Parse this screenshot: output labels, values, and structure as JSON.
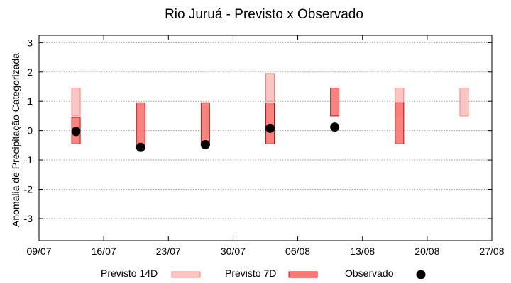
{
  "chart_data": {
    "type": "bar",
    "title": "Rio Juruá - Previsto x Observado",
    "ylabel": "Anomalia de Precipitação Categorizada",
    "xlabel": "",
    "ylim": [
      -3.75,
      3.25
    ],
    "yticks": [
      3,
      2,
      1,
      0,
      -1,
      -2,
      -3
    ],
    "x_range_days": [
      "2024-07-09",
      "2024-08-27"
    ],
    "xticks": [
      "09/07",
      "16/07",
      "23/07",
      "30/07",
      "06/08",
      "13/08",
      "20/08",
      "27/08"
    ],
    "grid": true,
    "series": [
      {
        "name": "Previsto 14D",
        "color": "#f9c6c3",
        "edge": "#e88a84",
        "ranges": [
          {
            "x": "13/07",
            "low": 0.5,
            "high": 1.45
          },
          {
            "x": "03/08",
            "low": 1.0,
            "high": 1.95
          },
          {
            "x": "17/08",
            "low": 0.5,
            "high": 1.45
          },
          {
            "x": "24/08",
            "low": 0.5,
            "high": 1.45
          }
        ]
      },
      {
        "name": "Previsto 7D",
        "color": "#f77a75",
        "edge": "#c0141a",
        "ranges": [
          {
            "x": "13/07",
            "low": -0.45,
            "high": 0.45
          },
          {
            "x": "20/07",
            "low": -0.55,
            "high": 0.95
          },
          {
            "x": "27/07",
            "low": -0.5,
            "high": 0.95
          },
          {
            "x": "03/08",
            "low": -0.45,
            "high": 0.95
          },
          {
            "x": "10/08",
            "low": 0.5,
            "high": 1.45
          },
          {
            "x": "17/08",
            "low": -0.45,
            "high": 0.95
          }
        ]
      },
      {
        "name": "Observado",
        "color": "#000000",
        "points": [
          {
            "x": "13/07",
            "y": -0.03
          },
          {
            "x": "20/07",
            "y": -0.57
          },
          {
            "x": "27/07",
            "y": -0.48
          },
          {
            "x": "03/08",
            "y": 0.08
          },
          {
            "x": "10/08",
            "y": 0.12
          }
        ]
      }
    ],
    "legend": {
      "position": "bottom",
      "items": [
        "Previsto 14D",
        "Previsto 7D",
        "Observado"
      ]
    }
  }
}
